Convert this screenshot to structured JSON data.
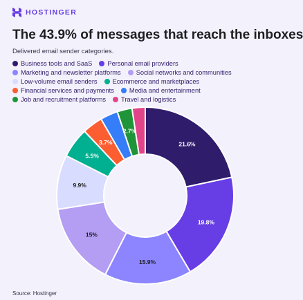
{
  "brand": {
    "name": "HOSTINGER",
    "color": "#673de6",
    "icon": "hostinger-logo-icon"
  },
  "header": {
    "title": "The 43.9% of messages that reach the inboxes",
    "subtitle": "Delivered email sender categories."
  },
  "footer": {
    "source": "Source: Hostinger"
  },
  "chart_data": {
    "type": "pie",
    "variant": "donut",
    "title": "The 43.9% of messages that reach the inboxes",
    "subtitle": "Delivered email sender categories.",
    "legend_position": "top",
    "unit": "%",
    "series": [
      {
        "name": "Business tools and SaaS",
        "value": 21.6,
        "label": "21.6%",
        "color": "#2f1c6a"
      },
      {
        "name": "Personal email providers",
        "value": 19.8,
        "label": "19.8%",
        "color": "#673de6"
      },
      {
        "name": "Marketing and newsletter platforms",
        "value": 15.9,
        "label": "15.9%",
        "color": "#8c85ff"
      },
      {
        "name": "Social networks and communities",
        "value": 15,
        "label": "15%",
        "color": "#b39ef3"
      },
      {
        "name": "Low-volume email senders",
        "value": 9.9,
        "label": "9.9%",
        "color": "#d8dcff"
      },
      {
        "name": "Ecommerce and marketplaces",
        "value": 5.5,
        "label": "5.5%",
        "color": "#00b090"
      },
      {
        "name": "Financial services and payments",
        "value": 3.7,
        "label": "3.7%",
        "color": "#fc5d31"
      },
      {
        "name": "Media and entertainment",
        "value": 3.2,
        "label": "",
        "color": "#357df9"
      },
      {
        "name": "Job and recruitment platforms",
        "value": 2.7,
        "label": "2.7%",
        "color": "#1f9438"
      },
      {
        "name": "Travel and logistics",
        "value": 2.4,
        "label": "",
        "color": "#e2448a"
      }
    ]
  }
}
